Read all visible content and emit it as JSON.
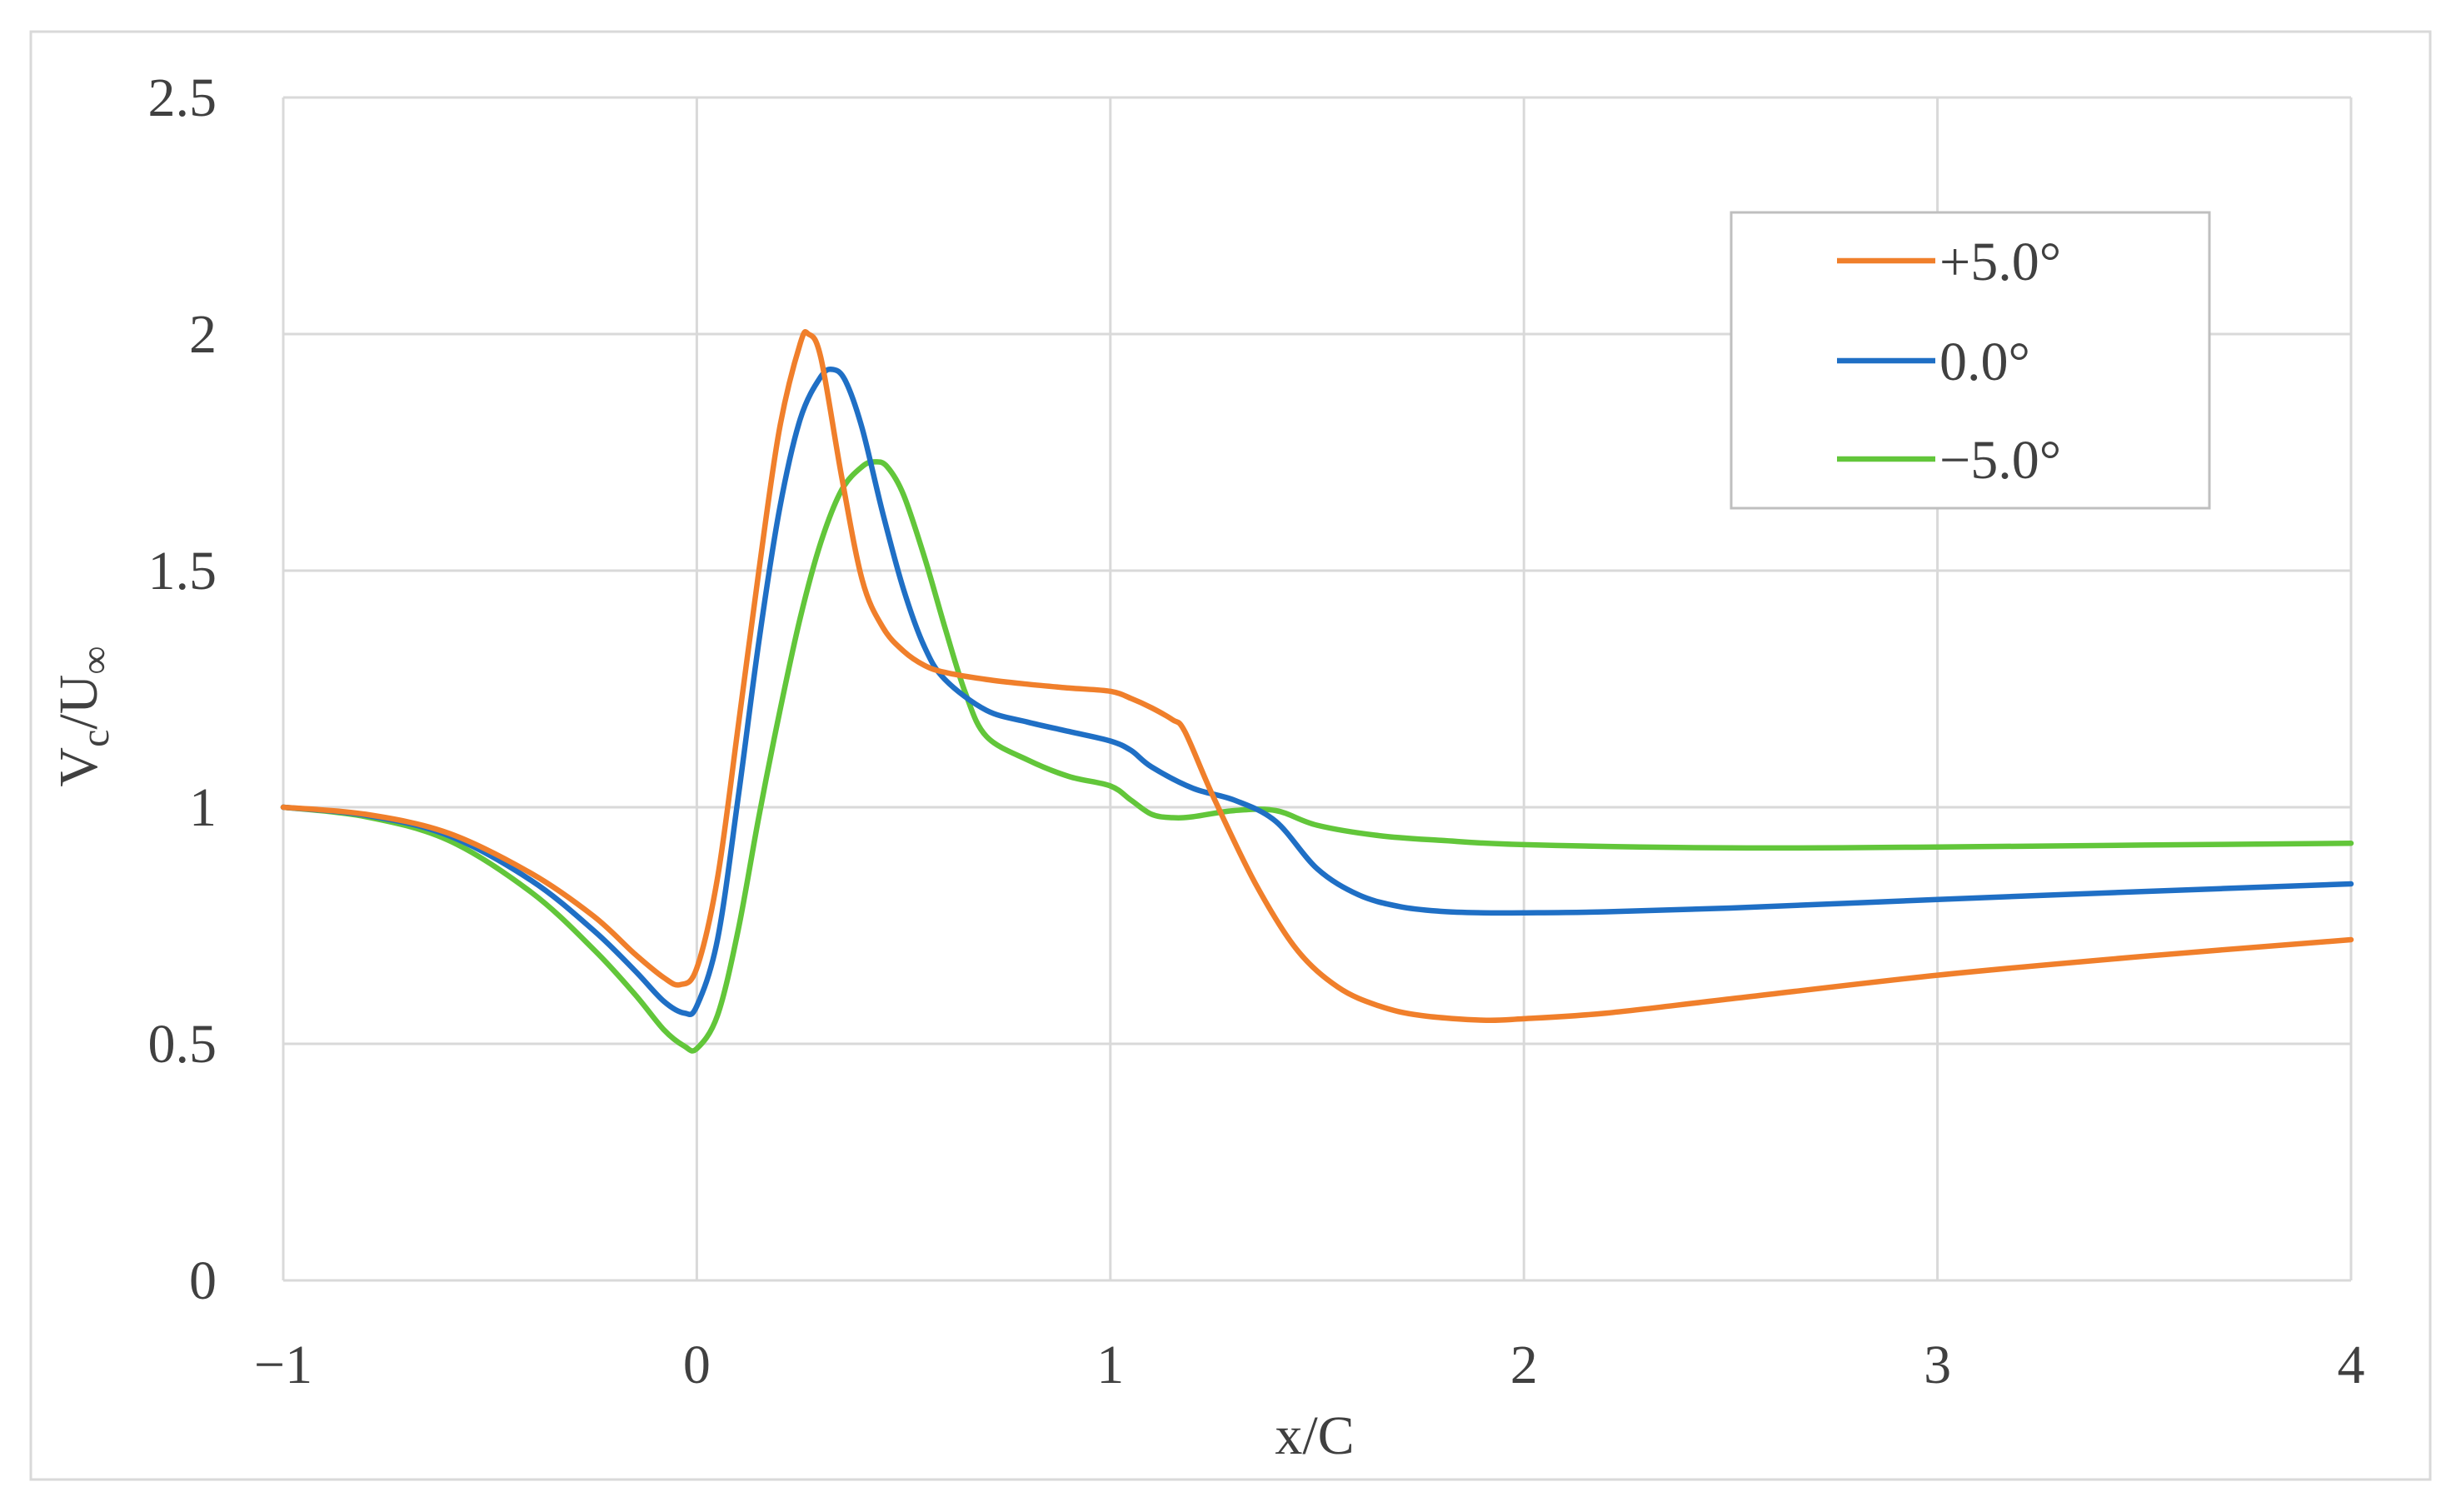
{
  "chart_data": {
    "type": "line",
    "title": "",
    "xlabel": "x/C",
    "ylabel": {
      "base": "V",
      "sub1": "c",
      "mid": "/U",
      "sub2": "∞"
    },
    "xlim": [
      -1,
      4
    ],
    "ylim": [
      0,
      2.5
    ],
    "xticks": [
      {
        "value": -1,
        "label": "−1"
      },
      {
        "value": 0,
        "label": "0"
      },
      {
        "value": 1,
        "label": "1"
      },
      {
        "value": 2,
        "label": "2"
      },
      {
        "value": 3,
        "label": "3"
      },
      {
        "value": 4,
        "label": "4"
      }
    ],
    "yticks": [
      {
        "value": 0,
        "label": "0"
      },
      {
        "value": 0.5,
        "label": "0.5"
      },
      {
        "value": 1,
        "label": "1"
      },
      {
        "value": 1.5,
        "label": "1.5"
      },
      {
        "value": 2,
        "label": "2"
      },
      {
        "value": 2.5,
        "label": "2.5"
      }
    ],
    "grid": true,
    "legend_position": "top-right",
    "series": [
      {
        "name": "+5.0°",
        "color": "#F07F2B",
        "x": [
          -1,
          -0.8,
          -0.6,
          -0.4,
          -0.25,
          -0.15,
          -0.08,
          -0.04,
          0,
          0.05,
          0.1,
          0.15,
          0.2,
          0.25,
          0.27,
          0.3,
          0.35,
          0.4,
          0.45,
          0.5,
          0.55,
          0.6,
          0.7,
          0.8,
          0.9,
          1.0,
          1.05,
          1.1,
          1.15,
          1.18,
          1.25,
          1.35,
          1.45,
          1.55,
          1.65,
          1.75,
          1.9,
          2.0,
          2.2,
          2.5,
          3.0,
          3.5,
          4.0
        ],
        "y": [
          1.0,
          0.985,
          0.945,
          0.86,
          0.77,
          0.69,
          0.64,
          0.625,
          0.66,
          0.85,
          1.17,
          1.5,
          1.8,
          1.98,
          2.0,
          1.95,
          1.7,
          1.48,
          1.38,
          1.33,
          1.3,
          1.285,
          1.27,
          1.26,
          1.252,
          1.245,
          1.23,
          1.21,
          1.185,
          1.16,
          1.02,
          0.84,
          0.7,
          0.62,
          0.58,
          0.56,
          0.55,
          0.553,
          0.565,
          0.595,
          0.645,
          0.685,
          0.72
        ]
      },
      {
        "name": "0.0°",
        "color": "#1F6FC5",
        "x": [
          -1,
          -0.8,
          -0.6,
          -0.4,
          -0.25,
          -0.15,
          -0.08,
          -0.03,
          0,
          0.05,
          0.1,
          0.15,
          0.2,
          0.25,
          0.3,
          0.33,
          0.36,
          0.4,
          0.45,
          0.5,
          0.55,
          0.6,
          0.7,
          0.8,
          0.9,
          1.0,
          1.05,
          1.1,
          1.2,
          1.3,
          1.4,
          1.5,
          1.6,
          1.7,
          1.8,
          1.9,
          2.0,
          2.2,
          2.5,
          3.0,
          3.5,
          4.0
        ],
        "y": [
          1.0,
          0.983,
          0.94,
          0.845,
          0.74,
          0.655,
          0.59,
          0.565,
          0.58,
          0.72,
          1.02,
          1.35,
          1.63,
          1.82,
          1.91,
          1.925,
          1.9,
          1.8,
          1.62,
          1.46,
          1.34,
          1.27,
          1.205,
          1.18,
          1.16,
          1.14,
          1.12,
          1.085,
          1.04,
          1.015,
          0.97,
          0.87,
          0.815,
          0.79,
          0.78,
          0.777,
          0.777,
          0.779,
          0.787,
          0.805,
          0.822,
          0.838
        ]
      },
      {
        "name": "−5.0°",
        "color": "#62C63A",
        "x": [
          -1,
          -0.8,
          -0.6,
          -0.4,
          -0.25,
          -0.15,
          -0.08,
          -0.03,
          0,
          0.05,
          0.1,
          0.15,
          0.2,
          0.25,
          0.3,
          0.35,
          0.4,
          0.43,
          0.46,
          0.5,
          0.55,
          0.6,
          0.65,
          0.7,
          0.8,
          0.9,
          1.0,
          1.05,
          1.1,
          1.15,
          1.2,
          1.3,
          1.4,
          1.5,
          1.65,
          1.8,
          2.0,
          2.5,
          3.0,
          3.5,
          4.0
        ],
        "y": [
          1.0,
          0.98,
          0.93,
          0.82,
          0.7,
          0.605,
          0.53,
          0.495,
          0.49,
          0.56,
          0.74,
          0.98,
          1.2,
          1.4,
          1.56,
          1.67,
          1.72,
          1.73,
          1.72,
          1.66,
          1.53,
          1.38,
          1.24,
          1.15,
          1.1,
          1.065,
          1.045,
          1.015,
          0.985,
          0.978,
          0.98,
          0.993,
          0.993,
          0.962,
          0.94,
          0.93,
          0.921,
          0.914,
          0.916,
          0.92,
          0.924
        ]
      }
    ]
  }
}
